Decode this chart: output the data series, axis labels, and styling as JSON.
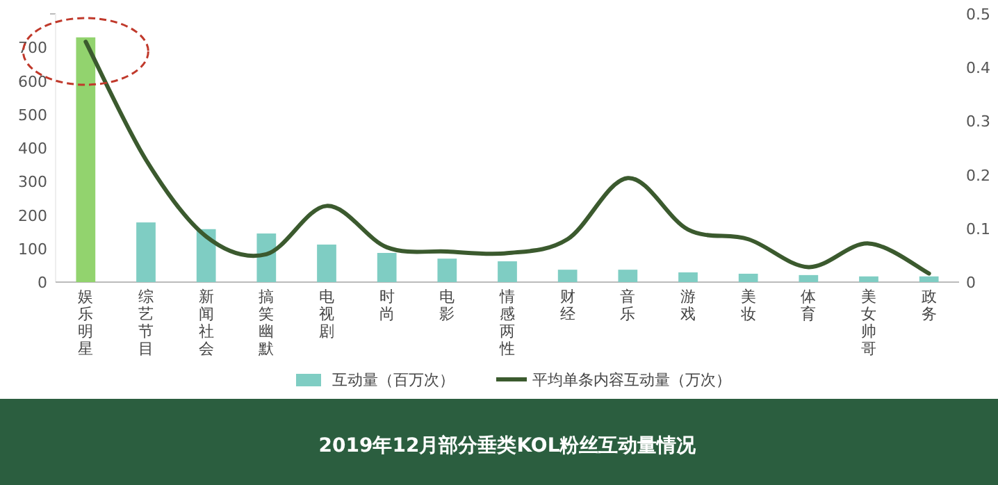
{
  "chart_data": {
    "type": "bar",
    "title": "2019年12月部分垂类KOL粉丝互动量情况",
    "categories": [
      "娱乐明星",
      "综艺节目",
      "新闻社会",
      "搞笑幽默",
      "电视剧",
      "时尚",
      "电影",
      "情感两性",
      "财经",
      "音乐",
      "游戏",
      "美妆",
      "体育",
      "美女帅哥",
      "政务"
    ],
    "series": [
      {
        "name": "互动量（百万次）",
        "color": "#7fcdc3",
        "colors": [
          "#92d36e",
          "#7fcdc3",
          "#7fcdc3",
          "#7fcdc3",
          "#7fcdc3",
          "#7fcdc3",
          "#7fcdc3",
          "#7fcdc3",
          "#7fcdc3",
          "#7fcdc3",
          "#7fcdc3",
          "#7fcdc3",
          "#7fcdc3",
          "#7fcdc3",
          "#7fcdc3"
        ],
        "values": [
          730,
          178,
          158,
          145,
          112,
          87,
          70,
          62,
          37,
          37,
          29,
          25,
          21,
          17,
          17
        ]
      },
      {
        "name": "平均单条内容互动量（万次）",
        "type": "line",
        "axis": "y2",
        "color": "#3b5a2e",
        "values": [
          0.448,
          0.228,
          0.085,
          0.052,
          0.142,
          0.065,
          0.057,
          0.054,
          0.08,
          0.194,
          0.098,
          0.08,
          0.028,
          0.072,
          0.016
        ]
      }
    ],
    "ylim": [
      0,
      800
    ],
    "yticks": [
      0,
      100,
      200,
      300,
      400,
      500,
      600,
      700,
      {
        "value": 800,
        "label": null
      }
    ],
    "y2lim": [
      0,
      0.5
    ],
    "y2ticks": [
      0,
      0.1,
      0.2,
      0.3,
      0.4,
      0.5
    ],
    "grid": false,
    "legend": "bottom"
  }
}
